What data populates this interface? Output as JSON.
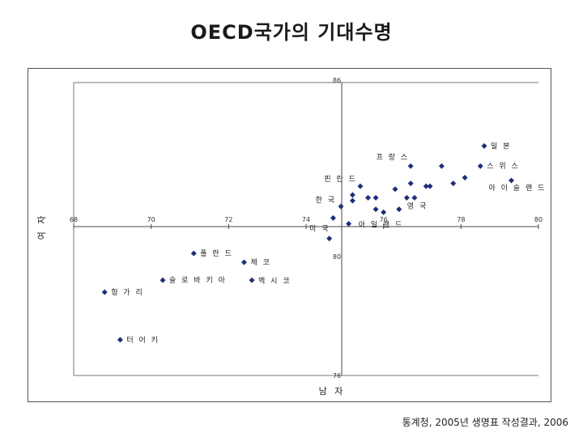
{
  "title": "OECD국가의 기대수명",
  "source": "통계청, 2005년 생명표 작성결과, 2006",
  "chart_data": {
    "type": "scatter",
    "title": "OECD국가의 기대수명",
    "xlabel": "남 자",
    "ylabel": "여 자",
    "xlim": [
      68,
      80
    ],
    "ylim": [
      76,
      86
    ],
    "crossing": {
      "x": 75,
      "y": 81
    },
    "x_ticks": [
      68,
      70,
      72,
      74,
      76,
      78,
      80
    ],
    "x_tick_labels": [
      "68",
      "70",
      "72",
      "74",
      "76",
      "78",
      "80"
    ],
    "y_tick_labels": [
      {
        "value": 86,
        "label": "86"
      },
      {
        "value": 80,
        "label": "80"
      },
      {
        "value": 76,
        "label": "76"
      }
    ],
    "marker_color": "#1f2f7a",
    "points": [
      {
        "x": 78.6,
        "y": 83.8,
        "label": "일 본"
      },
      {
        "x": 76.7,
        "y": 83.1,
        "label": "프 랑 스"
      },
      {
        "x": 77.5,
        "y": 83.1,
        "label": ""
      },
      {
        "x": 78.5,
        "y": 83.1,
        "label": "스 위 스"
      },
      {
        "x": 79.3,
        "y": 82.6,
        "label": "아 이 슬 랜 드"
      },
      {
        "x": 78.1,
        "y": 82.7,
        "label": ""
      },
      {
        "x": 77.8,
        "y": 82.5,
        "label": ""
      },
      {
        "x": 77.2,
        "y": 82.4,
        "label": ""
      },
      {
        "x": 77.1,
        "y": 82.4,
        "label": ""
      },
      {
        "x": 76.7,
        "y": 82.5,
        "label": ""
      },
      {
        "x": 76.3,
        "y": 82.3,
        "label": ""
      },
      {
        "x": 76.6,
        "y": 82.0,
        "label": ""
      },
      {
        "x": 76.8,
        "y": 82.0,
        "label": ""
      },
      {
        "x": 75.8,
        "y": 82.0,
        "label": ""
      },
      {
        "x": 75.6,
        "y": 82.0,
        "label": ""
      },
      {
        "x": 75.2,
        "y": 82.1,
        "label": ""
      },
      {
        "x": 75.2,
        "y": 81.9,
        "label": ""
      },
      {
        "x": 75.8,
        "y": 81.6,
        "label": ""
      },
      {
        "x": 76.4,
        "y": 81.6,
        "label": "영 국"
      },
      {
        "x": 76.0,
        "y": 81.5,
        "label": ""
      },
      {
        "x": 75.4,
        "y": 82.4,
        "label": "핀 란 드"
      },
      {
        "x": 74.9,
        "y": 81.7,
        "label": "한 국"
      },
      {
        "x": 74.7,
        "y": 81.3,
        "label": "미 국"
      },
      {
        "x": 75.1,
        "y": 81.1,
        "label": "아 일 랜 드"
      },
      {
        "x": 74.6,
        "y": 80.6,
        "label": ""
      },
      {
        "x": 71.1,
        "y": 80.1,
        "label": "폴 란 드"
      },
      {
        "x": 72.4,
        "y": 79.8,
        "label": "체 코"
      },
      {
        "x": 70.3,
        "y": 79.2,
        "label": "슬 로 바 키 아"
      },
      {
        "x": 72.6,
        "y": 79.2,
        "label": "멕 시 코"
      },
      {
        "x": 68.8,
        "y": 78.8,
        "label": "헝 가 리"
      },
      {
        "x": 69.2,
        "y": 77.2,
        "label": "터 어 키"
      }
    ]
  }
}
